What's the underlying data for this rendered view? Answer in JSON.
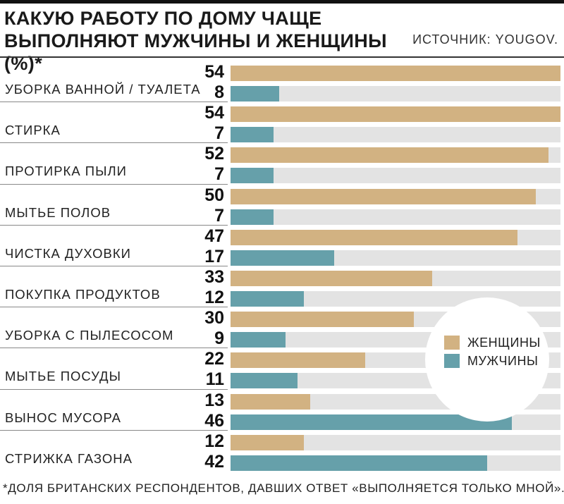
{
  "title": "КАКУЮ РАБОТУ ПО ДОМУ ЧАЩЕ ВЫПОЛНЯЮТ МУЖЧИНЫ И ЖЕНЩИНЫ (%)*",
  "source": "ИСТОЧНИК: YOUGOV.",
  "footnote": "*ДОЛЯ БРИТАНСКИХ РЕСПОНДЕНТОВ, ДАВШИХ ОТВЕТ «ВЫПОЛНЯЕТСЯ ТОЛЬКО МНОЙ».",
  "colors": {
    "women": "#d2b282",
    "men": "#66a0aa",
    "track": "#e3e3e3"
  },
  "chart_data": {
    "type": "bar",
    "orientation": "horizontal",
    "xlim": [
      0,
      54
    ],
    "legend": "right",
    "grid": false,
    "categories": [
      "УБОРКА ВАННОЙ / ТУАЛЕТА",
      "СТИРКА",
      "ПРОТИРКА ПЫЛИ",
      "МЫТЬЕ ПОЛОВ",
      "ЧИСТКА ДУХОВКИ",
      "ПОКУПКА ПРОДУКТОВ",
      "УБОРКА С ПЫЛЕСОСОМ",
      "МЫТЬЕ ПОСУДЫ",
      "ВЫНОС МУСОРА",
      "СТРИЖКА ГАЗОНА"
    ],
    "series": [
      {
        "name": "ЖЕНЩИНЫ",
        "values": [
          54,
          54,
          52,
          50,
          47,
          33,
          30,
          22,
          13,
          12
        ]
      },
      {
        "name": "МУЖЧИНЫ",
        "values": [
          8,
          7,
          7,
          7,
          17,
          12,
          9,
          11,
          46,
          42
        ]
      }
    ]
  }
}
